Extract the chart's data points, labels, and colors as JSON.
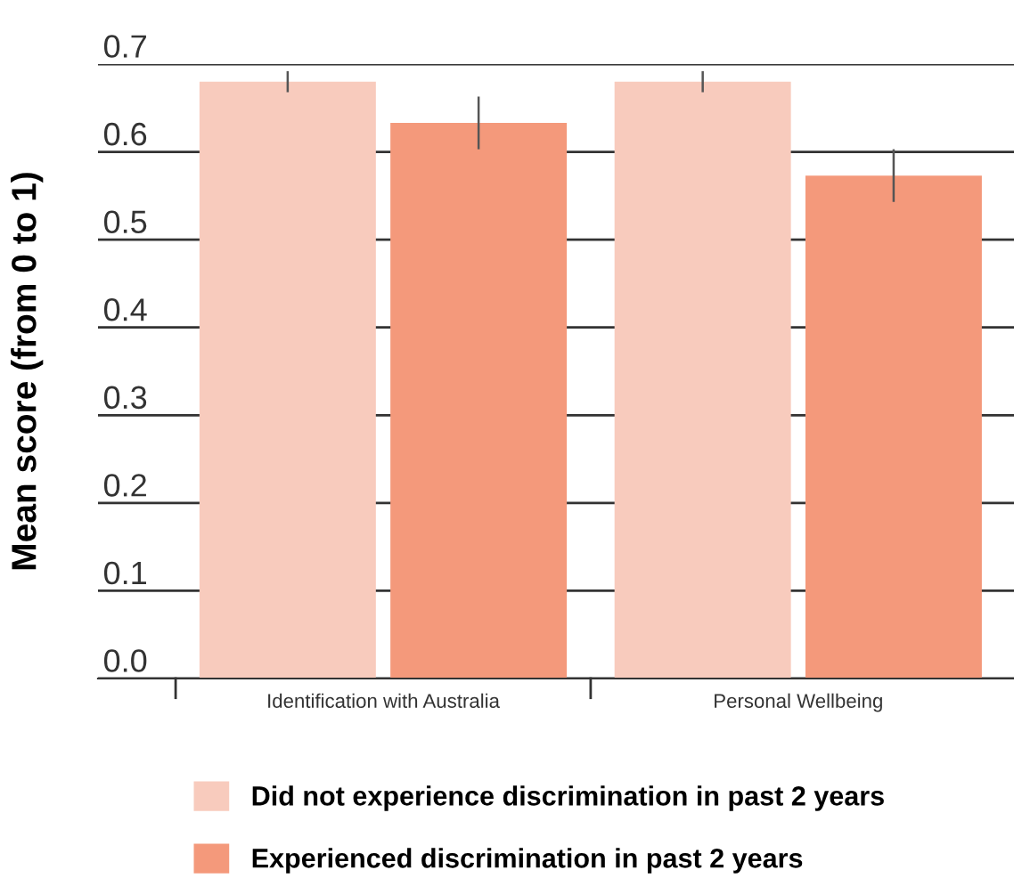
{
  "chart_data": {
    "type": "bar",
    "ylabel": "Mean score (from 0 to 1)",
    "categories": [
      "Identification with Australia",
      "Personal Wellbeing"
    ],
    "series": [
      {
        "name": "Did not experience discrimination in past 2 years",
        "color": "#f8cbbd",
        "values": [
          0.68,
          0.68
        ],
        "errors": [
          0.012,
          0.012
        ]
      },
      {
        "name": "Experienced discrimination in past 2 years",
        "color": "#f4997b",
        "values": [
          0.633,
          0.573
        ],
        "errors": [
          0.03,
          0.03
        ]
      }
    ],
    "ylim": [
      0,
      0.7
    ],
    "yticks": [
      {
        "value": 0,
        "label": "0.0"
      },
      0.1,
      0.2,
      0.3,
      0.4,
      0.5,
      0.6,
      0.7
    ],
    "grid": "y",
    "legend": "bottom"
  }
}
